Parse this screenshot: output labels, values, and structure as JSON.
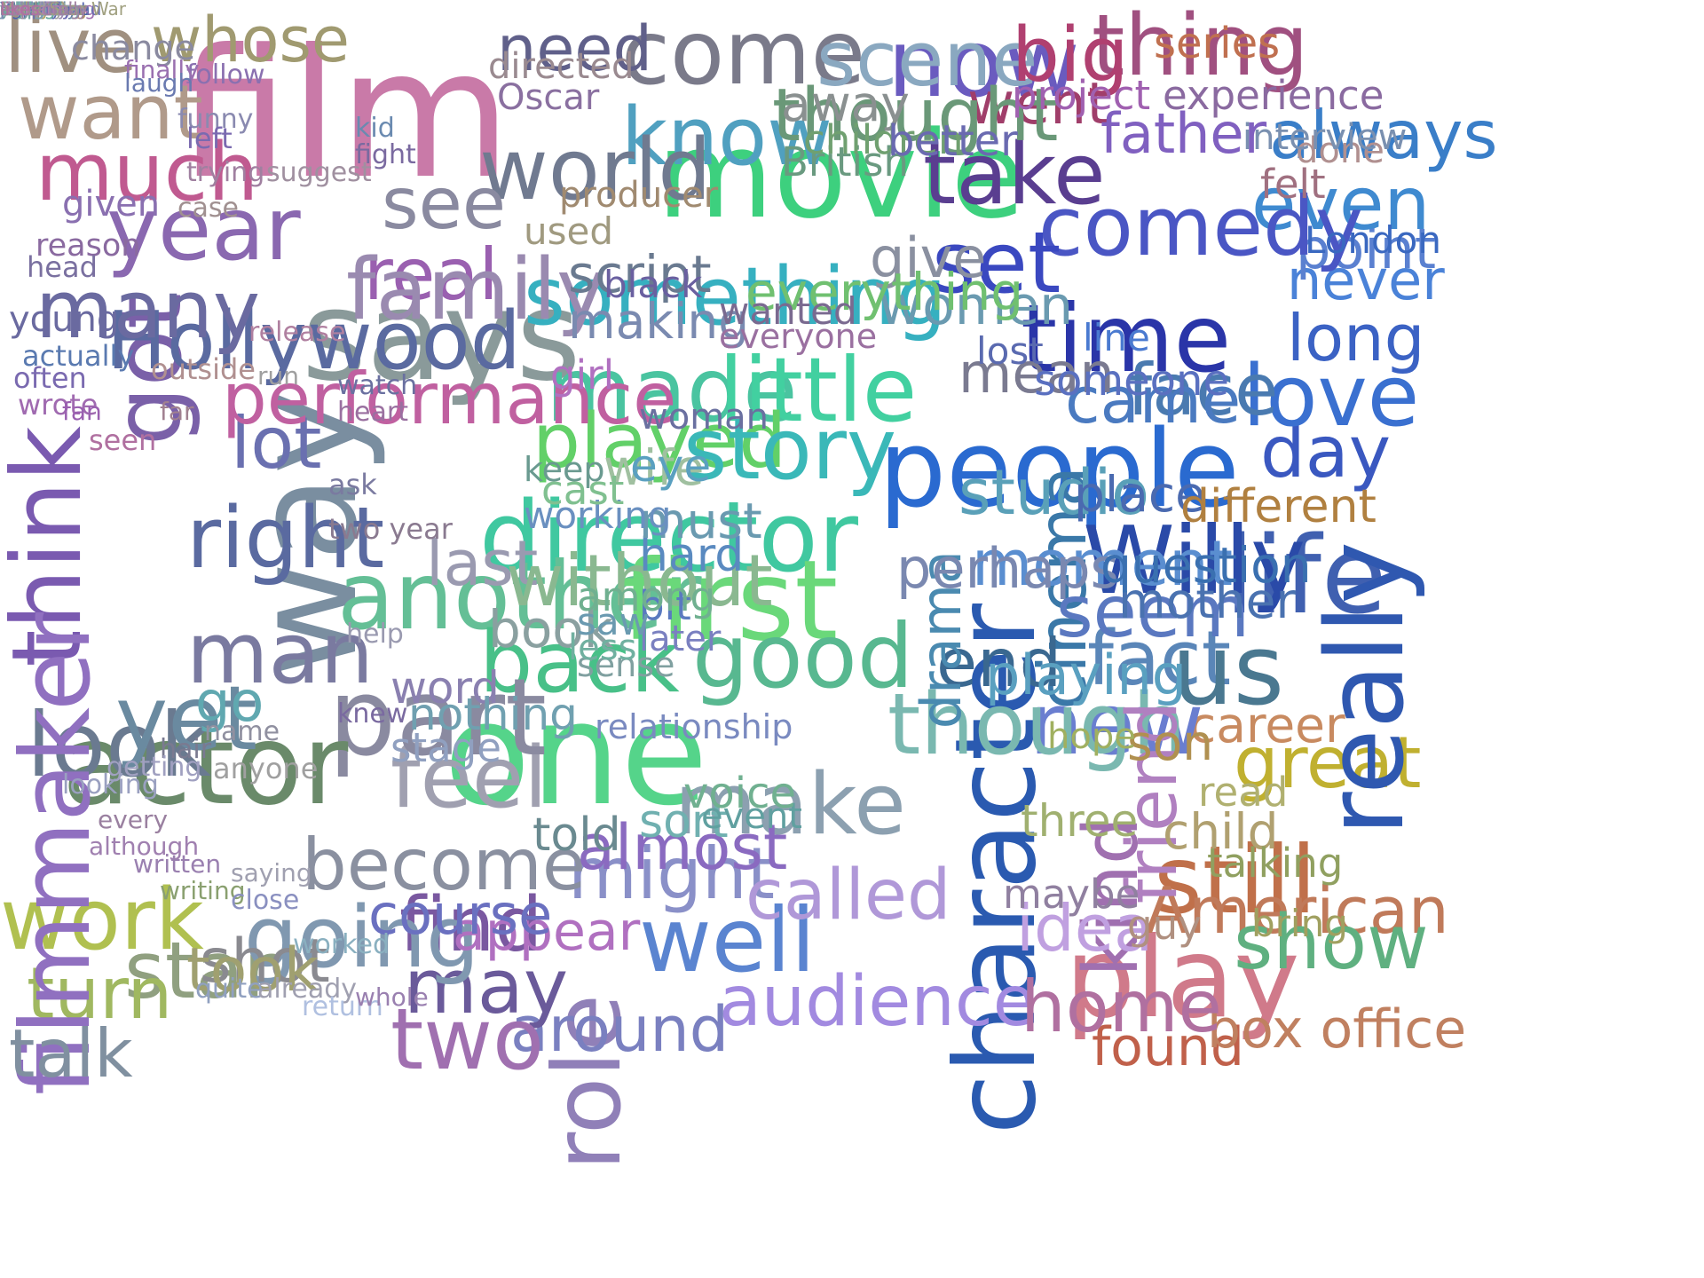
{
  "words": [
    {
      "text": "film",
      "color": "#c97aa8"
    },
    {
      "text": "movie",
      "color": "#3dd07e"
    },
    {
      "text": "now",
      "color": "#6a5bbf"
    },
    {
      "text": "thing",
      "color": "#a05080"
    },
    {
      "text": "people",
      "color": "#2a6ad0"
    },
    {
      "text": "time",
      "color": "#2a35a8"
    },
    {
      "text": "says",
      "color": "#8a9a9a"
    },
    {
      "text": "way",
      "color": "#7a8ea0"
    },
    {
      "text": "one",
      "color": "#55d48a"
    },
    {
      "text": "character",
      "color": "#2a5ab0"
    },
    {
      "text": "director",
      "color": "#40c8a0"
    },
    {
      "text": "made",
      "color": "#4ac4a0"
    },
    {
      "text": "little",
      "color": "#42d0a0"
    },
    {
      "text": "played",
      "color": "#62d068"
    },
    {
      "text": "story",
      "color": "#3ab8b8"
    },
    {
      "text": "something",
      "color": "#36b0c0"
    },
    {
      "text": "another",
      "color": "#64bf96"
    },
    {
      "text": "first",
      "color": "#6ad87a"
    },
    {
      "text": "good",
      "color": "#58b890"
    },
    {
      "text": "back",
      "color": "#48c088"
    },
    {
      "text": "make",
      "color": "#8ca0b0"
    },
    {
      "text": "might",
      "color": "#8a90c8"
    },
    {
      "text": "role",
      "color": "#9080b8"
    },
    {
      "text": "well",
      "color": "#5a84d0"
    },
    {
      "text": "called",
      "color": "#b098d8"
    },
    {
      "text": "audience",
      "color": "#a28ae0"
    },
    {
      "text": "around",
      "color": "#7a80c0"
    },
    {
      "text": "may",
      "color": "#6a5a9a"
    },
    {
      "text": "find",
      "color": "#7a58a0"
    },
    {
      "text": "play",
      "color": "#d07a8a"
    },
    {
      "text": "still",
      "color": "#c0704a"
    },
    {
      "text": "great",
      "color": "#c0b030"
    },
    {
      "text": "American",
      "color": "#c07a5a"
    },
    {
      "text": "show",
      "color": "#5fb080"
    },
    {
      "text": "found",
      "color": "#c0604a"
    },
    {
      "text": "box office",
      "color": "#c08060"
    },
    {
      "text": "career",
      "color": "#c88a60"
    },
    {
      "text": "new",
      "color": "#6a7ed0"
    },
    {
      "text": "fact",
      "color": "#5a86b8"
    },
    {
      "text": "us",
      "color": "#4a7890"
    },
    {
      "text": "life",
      "color": "#4060b0"
    },
    {
      "text": "really",
      "color": "#2f58b0"
    },
    {
      "text": "Willy",
      "color": "#2a4aa8"
    },
    {
      "text": "day",
      "color": "#3a58c0"
    },
    {
      "text": "love",
      "color": "#3a70d0"
    },
    {
      "text": "face",
      "color": "#4a7ab0"
    },
    {
      "text": "long",
      "color": "#3b62c4"
    },
    {
      "text": "never",
      "color": "#4a82d8"
    },
    {
      "text": "point",
      "color": "#5a80d0"
    },
    {
      "text": "even",
      "color": "#3f8ad0"
    },
    {
      "text": "always",
      "color": "#3a7ec8"
    },
    {
      "text": "comedy",
      "color": "#4a56c4"
    },
    {
      "text": "take",
      "color": "#5a3e90"
    },
    {
      "text": "know",
      "color": "#50a0c0"
    },
    {
      "text": "come",
      "color": "#7a7a8a"
    },
    {
      "text": "scene",
      "color": "#8aa8c0"
    },
    {
      "text": "world",
      "color": "#707a90"
    },
    {
      "text": "need",
      "color": "#60608a"
    },
    {
      "text": "big",
      "color": "#b04070"
    },
    {
      "text": "set",
      "color": "#3a48c0"
    },
    {
      "text": "went",
      "color": "#a03e6a"
    },
    {
      "text": "father",
      "color": "#8060c0"
    },
    {
      "text": "thought",
      "color": "#6a9878"
    },
    {
      "text": "came",
      "color": "#4a7ac0"
    },
    {
      "text": "cinema",
      "color": "#3a78a8"
    },
    {
      "text": "studio",
      "color": "#5aa0b8"
    },
    {
      "text": "moment",
      "color": "#5a8ed0"
    },
    {
      "text": "seem",
      "color": "#5a78c0"
    },
    {
      "text": "end",
      "color": "#3a6890"
    },
    {
      "text": "though",
      "color": "#7ab8b0"
    },
    {
      "text": "drama",
      "color": "#4a8ab0"
    },
    {
      "text": "kind",
      "color": "#a070b0"
    },
    {
      "text": "friend",
      "color": "#b080c0"
    },
    {
      "text": "idea",
      "color": "#c0a0e0"
    },
    {
      "text": "home",
      "color": "#b070a0"
    },
    {
      "text": "two",
      "color": "#a070b0"
    },
    {
      "text": "star",
      "color": "#90a080"
    },
    {
      "text": "turn",
      "color": "#a0b860"
    },
    {
      "text": "work",
      "color": "#b0c050"
    },
    {
      "text": "going",
      "color": "#8098b0"
    },
    {
      "text": "become",
      "color": "#8a90a0"
    },
    {
      "text": "feel",
      "color": "#a0a0b0"
    },
    {
      "text": "part",
      "color": "#8a8aa0"
    },
    {
      "text": "actor",
      "color": "#6a8a6a"
    },
    {
      "text": "look",
      "color": "#6a7a90"
    },
    {
      "text": "yet",
      "color": "#6a8aa0"
    },
    {
      "text": "man",
      "color": "#7a7aa0"
    },
    {
      "text": "right",
      "color": "#5a6aa0"
    },
    {
      "text": "lot",
      "color": "#6a70b0"
    },
    {
      "text": "got",
      "color": "#7a60a8"
    },
    {
      "text": "think",
      "color": "#7a5ab0"
    },
    {
      "text": "Hollywood",
      "color": "#5a6aa0"
    },
    {
      "text": "year",
      "color": "#8a68b0"
    },
    {
      "text": "much",
      "color": "#c05a90"
    },
    {
      "text": "want",
      "color": "#b09a8a"
    },
    {
      "text": "live",
      "color": "#a09080"
    },
    {
      "text": "whose",
      "color": "#a09a70"
    },
    {
      "text": "performance",
      "color": "#c060a0"
    },
    {
      "text": "real",
      "color": "#9a60b0"
    },
    {
      "text": "family",
      "color": "#9a8ab0"
    },
    {
      "text": "see",
      "color": "#8a8aa0"
    },
    {
      "text": "many",
      "color": "#6a6aa0"
    },
    {
      "text": "filmmaker",
      "color": "#9070c0"
    },
    {
      "text": "shot",
      "color": "#8a8a90"
    },
    {
      "text": "talk",
      "color": "#8090a0"
    },
    {
      "text": "took",
      "color": "#a0a070"
    },
    {
      "text": "appear",
      "color": "#b070c0"
    },
    {
      "text": "almost",
      "color": "#8a6ac0"
    },
    {
      "text": "give",
      "color": "#8a90a0"
    },
    {
      "text": "women",
      "color": "#6a9ab0"
    },
    {
      "text": "mean",
      "color": "#7a7a90"
    },
    {
      "text": "told",
      "color": "#6a8a90"
    },
    {
      "text": "last",
      "color": "#9a9ab0"
    },
    {
      "text": "book",
      "color": "#8aa0a0"
    },
    {
      "text": "without",
      "color": "#8ab890"
    },
    {
      "text": "go",
      "color": "#60a8b0"
    },
    {
      "text": "course",
      "color": "#6a70c0"
    },
    {
      "text": "perhaps",
      "color": "#7a88b0"
    },
    {
      "text": "playing",
      "color": "#5aa0c0"
    },
    {
      "text": "script",
      "color": "#6a7a90"
    },
    {
      "text": "making",
      "color": "#7a8ab0"
    },
    {
      "text": "everything",
      "color": "#70c070"
    },
    {
      "text": "away",
      "color": "#8a9090"
    },
    {
      "text": "British",
      "color": "#6a9a80"
    },
    {
      "text": "children",
      "color": "#70a070"
    },
    {
      "text": "series",
      "color": "#c07050"
    },
    {
      "text": "experience",
      "color": "#8a6aa0"
    },
    {
      "text": "project",
      "color": "#a060b0"
    },
    {
      "text": "felt",
      "color": "#a07080"
    },
    {
      "text": "done",
      "color": "#b09090"
    },
    {
      "text": "interview",
      "color": "#7a90b0"
    },
    {
      "text": "better",
      "color": "#6a6ab0"
    },
    {
      "text": "lost",
      "color": "#5a6ab0"
    },
    {
      "text": "someone",
      "color": "#5a70c0"
    },
    {
      "text": "line",
      "color": "#4a7ad0"
    },
    {
      "text": "London",
      "color": "#3a68c0"
    },
    {
      "text": "mother",
      "color": "#4a72b0"
    },
    {
      "text": "place",
      "color": "#4a6ab0"
    },
    {
      "text": "question",
      "color": "#3a70b0"
    },
    {
      "text": "different",
      "color": "#b08040"
    },
    {
      "text": "son",
      "color": "#b09050"
    },
    {
      "text": "child",
      "color": "#b0a070"
    },
    {
      "text": "read",
      "color": "#b0b070"
    },
    {
      "text": "talking",
      "color": "#90a060"
    },
    {
      "text": "bring",
      "color": "#a0a060"
    },
    {
      "text": "guy",
      "color": "#b09080"
    },
    {
      "text": "maybe",
      "color": "#9080a0"
    },
    {
      "text": "three",
      "color": "#a0b070"
    },
    {
      "text": "hope",
      "color": "#a0b060"
    },
    {
      "text": "wife",
      "color": "#a0c0a0"
    },
    {
      "text": "later",
      "color": "#7a80c0"
    },
    {
      "text": "bit",
      "color": "#5a7ac0"
    },
    {
      "text": "hard",
      "color": "#5a8ac0"
    },
    {
      "text": "must",
      "color": "#6a9ab0"
    },
    {
      "text": "eye",
      "color": "#5aa0c0"
    },
    {
      "text": "woman",
      "color": "#6a70a0"
    },
    {
      "text": "word",
      "color": "#8a80b0"
    },
    {
      "text": "stage",
      "color": "#90a0c0"
    },
    {
      "text": "sort",
      "color": "#70b0b0"
    },
    {
      "text": "event",
      "color": "#60a0a0"
    },
    {
      "text": "voice",
      "color": "#70b090"
    },
    {
      "text": "nothing",
      "color": "#70a0b0"
    },
    {
      "text": "relationship",
      "color": "#7a8ac0"
    },
    {
      "text": "sense",
      "color": "#80a0a0"
    },
    {
      "text": "less",
      "color": "#70b0a0"
    },
    {
      "text": "saw",
      "color": "#6a9ab0"
    },
    {
      "text": "among",
      "color": "#70b090"
    },
    {
      "text": "working",
      "color": "#6a90c0"
    },
    {
      "text": "cast",
      "color": "#80c090"
    },
    {
      "text": "keep",
      "color": "#6a9a90"
    },
    {
      "text": "girl",
      "color": "#b070c0"
    },
    {
      "text": "black",
      "color": "#6a60a0"
    },
    {
      "text": "wanted",
      "color": "#7a6a90"
    },
    {
      "text": "everyone",
      "color": "#9a70a0"
    },
    {
      "text": "used",
      "color": "#a09a80"
    },
    {
      "text": "producer",
      "color": "#a08a70"
    },
    {
      "text": "directed",
      "color": "#9a8a90"
    },
    {
      "text": "Oscar",
      "color": "#8a70a0"
    },
    {
      "text": "change",
      "color": "#8a8aa0"
    },
    {
      "text": "given",
      "color": "#8a70b0"
    },
    {
      "text": "reason",
      "color": "#8a6aa0"
    },
    {
      "text": "head",
      "color": "#7a70a0"
    },
    {
      "text": "young",
      "color": "#6a6aa0"
    },
    {
      "text": "actually",
      "color": "#5a7ab0"
    },
    {
      "text": "often",
      "color": "#7a6ab0"
    },
    {
      "text": "wrote",
      "color": "#a06ab0"
    },
    {
      "text": "fan",
      "color": "#9a60b0"
    },
    {
      "text": "seen",
      "color": "#b070a0"
    },
    {
      "text": "outside",
      "color": "#b09090"
    },
    {
      "text": "far",
      "color": "#a08090"
    },
    {
      "text": "release",
      "color": "#b080a0"
    },
    {
      "text": "run",
      "color": "#a0a0a0"
    },
    {
      "text": "case",
      "color": "#a09090"
    },
    {
      "text": "trying",
      "color": "#a080a0"
    },
    {
      "text": "suggest",
      "color": "#a090a0"
    },
    {
      "text": "follow",
      "color": "#8a70b0"
    },
    {
      "text": "funny",
      "color": "#8a8ab0"
    },
    {
      "text": "left",
      "color": "#7a6ab0"
    },
    {
      "text": "finally",
      "color": "#9a70b0"
    },
    {
      "text": "laugh",
      "color": "#6a7ab0"
    },
    {
      "text": "kid",
      "color": "#6a8ab0"
    },
    {
      "text": "fight",
      "color": "#7a6aa0"
    },
    {
      "text": "watch",
      "color": "#6a70a0"
    },
    {
      "text": "heart",
      "color": "#9a70a0"
    },
    {
      "text": "ask",
      "color": "#7a7aa0"
    },
    {
      "text": "two year",
      "color": "#8a7a90"
    },
    {
      "text": "help",
      "color": "#9a9ab0"
    },
    {
      "text": "knew",
      "color": "#7a6aa0"
    },
    {
      "text": "name",
      "color": "#9090a0"
    },
    {
      "text": "anyone",
      "color": "#a0a0a0"
    },
    {
      "text": "hair",
      "color": "#7a7a90"
    },
    {
      "text": "getting",
      "color": "#a0a0c0"
    },
    {
      "text": "looking",
      "color": "#9aa0c0"
    },
    {
      "text": "every",
      "color": "#9a80a0"
    },
    {
      "text": "although",
      "color": "#a080b0"
    },
    {
      "text": "written",
      "color": "#9a80b0"
    },
    {
      "text": "writing",
      "color": "#8aa070"
    },
    {
      "text": "saying",
      "color": "#a0a0b0"
    },
    {
      "text": "close",
      "color": "#8a90c0"
    },
    {
      "text": "quite",
      "color": "#90a0c0"
    },
    {
      "text": "already",
      "color": "#a0a0b0"
    },
    {
      "text": "worked",
      "color": "#8ab0c0"
    },
    {
      "text": "return",
      "color": "#b0c0e0"
    },
    {
      "text": "whole",
      "color": "#9a80b0"
    },
    {
      "text": "industry",
      "color": "#8a80c0"
    },
    {
      "text": "period",
      "color": "#8a80b0"
    },
    {
      "text": "became",
      "color": "#7a80c0"
    },
    {
      "text": "theatre",
      "color": "#a090b0"
    },
    {
      "text": "problem",
      "color": "#9a80b0"
    },
    {
      "text": "interesting",
      "color": "#a070b0"
    },
    {
      "text": "novel",
      "color": "#c080a0"
    },
    {
      "text": "believe",
      "color": "#b090b0"
    },
    {
      "text": "small",
      "color": "#a090a0"
    },
    {
      "text": "famous",
      "color": "#b0a0a0"
    },
    {
      "text": "according",
      "color": "#b09060"
    },
    {
      "text": "watching",
      "color": "#b0a060"
    },
    {
      "text": "minute",
      "color": "#a08040"
    },
    {
      "text": "today",
      "color": "#b0a060"
    },
    {
      "text": "today",
      "color": "#b0a060"
    },
    {
      "text": "York",
      "color": "#5a7ab0"
    },
    {
      "text": "New",
      "color": "#4a6ab0"
    },
    {
      "text": "public",
      "color": "#7a70b0"
    },
    {
      "text": "next",
      "color": "#5a6ab0"
    },
    {
      "text": "despite",
      "color": "#6a70b0"
    },
    {
      "text": "start",
      "color": "#4a68a0"
    },
    {
      "text": "version",
      "color": "#4a6aa0"
    },
    {
      "text": "important",
      "color": "#5a6ab0"
    },
    {
      "text": "certainly",
      "color": "#5a78a0"
    },
    {
      "text": "full",
      "color": "#4a5ab0"
    },
    {
      "text": "title",
      "color": "#5a5ab0"
    },
    {
      "text": "power",
      "color": "#5a60b0"
    },
    {
      "text": "understand",
      "color": "#6a70b0"
    },
    {
      "text": "loved",
      "color": "#6a6ac0"
    },
    {
      "text": "joke",
      "color": "#8a7ab0"
    },
    {
      "text": "based",
      "color": "#4a70c0"
    },
    {
      "text": "figure",
      "color": "#4a68b0"
    },
    {
      "text": "leave",
      "color": "#4a70b0"
    },
    {
      "text": "state",
      "color": "#3a68b0"
    },
    {
      "text": "age",
      "color": "#4a60b0"
    },
    {
      "text": "sometime",
      "color": "#4a68a0"
    },
    {
      "text": "taken",
      "color": "#5a6ab0"
    },
    {
      "text": "camera",
      "color": "#4a6aa0"
    },
    {
      "text": "stop",
      "color": "#5a60b0"
    },
    {
      "text": "enough",
      "color": "#5a6aa0"
    },
    {
      "text": "money",
      "color": "#5a68b0"
    },
    {
      "text": "past",
      "color": "#5a6a90"
    },
    {
      "text": "number",
      "color": "#5a7aa0"
    },
    {
      "text": "award",
      "color": "#5a80a0"
    },
    {
      "text": "meet",
      "color": "#5a70b0"
    },
    {
      "text": "feature",
      "color": "#6a80b0"
    },
    {
      "text": "hit",
      "color": "#6ab0a0"
    },
    {
      "text": "white",
      "color": "#7ab0a0"
    },
    {
      "text": "last year",
      "color": "#7a9ab0"
    },
    {
      "text": "sound",
      "color": "#6a90a0"
    },
    {
      "text": "men",
      "color": "#8aa0a0"
    },
    {
      "text": "known",
      "color": "#7aa0a0"
    },
    {
      "text": "film",
      "color": "#8aa0b0"
    },
    {
      "text": "week",
      "color": "#90b0a0"
    },
    {
      "text": "sequel",
      "color": "#7ab0a0"
    },
    {
      "text": "mind",
      "color": "#7aa0a0"
    },
    {
      "text": "school",
      "color": "#7a90a0"
    },
    {
      "text": "Couple",
      "color": "#9a9ab0"
    },
    {
      "text": "result",
      "color": "#9a9ab0"
    },
    {
      "text": "country",
      "color": "#9a8ab0"
    },
    {
      "text": "asked",
      "color": "#a08ab0"
    },
    {
      "text": "television",
      "color": "#a090b0"
    },
    {
      "text": "year",
      "color": "#6aa0a0"
    },
    {
      "text": "old",
      "color": "#6a90a0"
    },
    {
      "text": "job",
      "color": "#7aa0b0"
    },
    {
      "text": "least",
      "color": "#6ab0a0"
    },
    {
      "text": "move",
      "color": "#6aa090"
    },
    {
      "text": "added",
      "color": "#7a9ab0"
    },
    {
      "text": "screen",
      "color": "#7ab090"
    },
    {
      "text": "acting",
      "color": "#6ab0a0"
    },
    {
      "text": "style",
      "color": "#7ab0a0"
    },
    {
      "text": "image",
      "color": "#7aa0b0"
    },
    {
      "text": "favourite",
      "color": "#8aa0a0"
    },
    {
      "text": "following",
      "color": "#7ab0b0"
    },
    {
      "text": "together",
      "color": "#7a9aa0"
    },
    {
      "text": "second",
      "color": "#6aa0a0"
    },
    {
      "text": "picture",
      "color": "#8a9ab0"
    },
    {
      "text": "put",
      "color": "#7a8ab0"
    },
    {
      "text": "hand",
      "color": "#8a90b0"
    },
    {
      "text": "issue",
      "color": "#6aa080"
    },
    {
      "text": "recently",
      "color": "#6a6ab0"
    },
    {
      "text": "cut",
      "color": "#9a9a90"
    },
    {
      "text": "exactly",
      "color": "#a0a0a0"
    },
    {
      "text": "including",
      "color": "#9a80a0"
    },
    {
      "text": "remain",
      "color": "#b080b0"
    },
    {
      "text": "Mark Star War",
      "color": "#a0a080"
    },
    {
      "text": "especially",
      "color": "#a080a0"
    },
    {
      "text": "likes",
      "color": "#b070a0"
    }
  ]
}
